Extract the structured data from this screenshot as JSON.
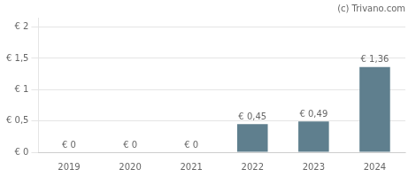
{
  "chart_data": {
    "type": "bar",
    "categories": [
      "2019",
      "2020",
      "2021",
      "2022",
      "2023",
      "2024"
    ],
    "values": [
      0,
      0,
      0,
      0.45,
      0.49,
      1.36
    ],
    "value_labels": [
      "€ 0",
      "€ 0",
      "€ 0",
      "€ 0,45",
      "€ 0,49",
      "€ 1,36"
    ],
    "color": "#5f7f8e",
    "ylim": [
      0,
      2.15
    ],
    "yticks": [
      {
        "value": 0,
        "label": "€ 0"
      },
      {
        "value": 0.5,
        "label": "€ 0,5"
      },
      {
        "value": 1.0,
        "label": "€ 1"
      },
      {
        "value": 1.5,
        "label": "€ 1,5"
      },
      {
        "value": 2.0,
        "label": "€ 2"
      }
    ],
    "grid": true,
    "data_labels": true,
    "annotations": [
      "(c) Trivano.com"
    ]
  }
}
